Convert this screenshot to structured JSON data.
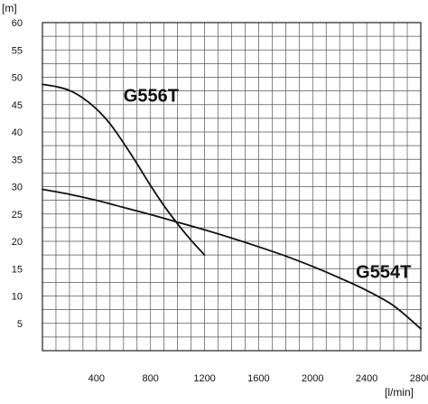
{
  "chart_data": {
    "type": "line",
    "xlabel": "[l/min]",
    "ylabel": "[m]",
    "xlim": [
      0,
      2800
    ],
    "ylim": [
      0,
      60
    ],
    "grid": true,
    "x_ticks": [
      400,
      800,
      1200,
      1600,
      2000,
      2400,
      2800
    ],
    "y_ticks": [
      5,
      10,
      15,
      20,
      25,
      30,
      35,
      40,
      45,
      50,
      55,
      60
    ],
    "series": [
      {
        "name": "G556T",
        "color": "#111111",
        "points": [
          [
            0,
            48.7
          ],
          [
            100,
            48.3
          ],
          [
            200,
            47.6
          ],
          [
            300,
            46.2
          ],
          [
            400,
            44.2
          ],
          [
            500,
            41.5
          ],
          [
            600,
            38.0
          ],
          [
            700,
            34.2
          ],
          [
            800,
            30.2
          ],
          [
            900,
            26.5
          ],
          [
            1000,
            23.2
          ],
          [
            1100,
            20.2
          ],
          [
            1200,
            17.5
          ]
        ]
      },
      {
        "name": "G554T",
        "color": "#111111",
        "points": [
          [
            0,
            29.5
          ],
          [
            200,
            28.6
          ],
          [
            400,
            27.5
          ],
          [
            600,
            26.2
          ],
          [
            800,
            24.9
          ],
          [
            1000,
            23.5
          ],
          [
            1200,
            22.1
          ],
          [
            1400,
            20.6
          ],
          [
            1600,
            19.0
          ],
          [
            1800,
            17.3
          ],
          [
            2000,
            15.4
          ],
          [
            2200,
            13.3
          ],
          [
            2400,
            11.0
          ],
          [
            2600,
            8.2
          ],
          [
            2800,
            4.0
          ]
        ]
      }
    ]
  }
}
